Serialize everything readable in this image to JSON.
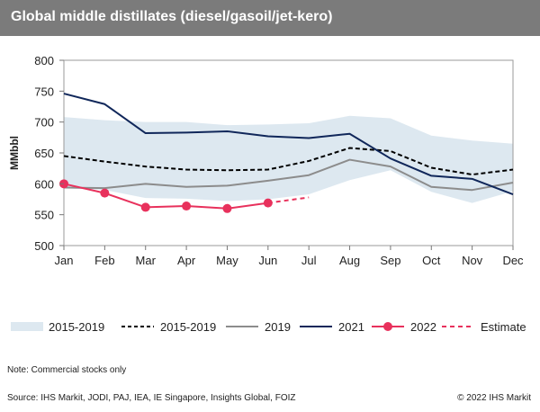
{
  "header": {
    "title": "Global middle distillates (diesel/gasoil/jet-kero)"
  },
  "chart_data": {
    "type": "line",
    "title": "Global middle distillates (diesel/gasoil/jet-kero)",
    "xlabel": "",
    "ylabel": "MMbbl",
    "ylim": [
      500,
      800
    ],
    "yticks": [
      500,
      550,
      600,
      650,
      700,
      750,
      800
    ],
    "categories": [
      "Jan",
      "Feb",
      "Mar",
      "Apr",
      "May",
      "Jun",
      "Jul",
      "Aug",
      "Sep",
      "Oct",
      "Nov",
      "Dec"
    ],
    "band": {
      "name": "2015-2019",
      "low": [
        593,
        590,
        577,
        576,
        572,
        575,
        583,
        606,
        622,
        587,
        569,
        588
      ],
      "high": [
        708,
        703,
        700,
        700,
        695,
        696,
        698,
        710,
        706,
        678,
        670,
        665
      ],
      "color": "#dde8f0"
    },
    "series": [
      {
        "name": "2015-2019",
        "style": "dashed",
        "color": "#000000",
        "values": [
          645,
          636,
          628,
          623,
          622,
          623,
          637,
          658,
          653,
          626,
          615,
          623
        ]
      },
      {
        "name": "2019",
        "style": "solid",
        "color": "#8c8c8c",
        "values": [
          594,
          593,
          600,
          595,
          597,
          605,
          614,
          639,
          628,
          595,
          590,
          602
        ]
      },
      {
        "name": "2021",
        "style": "solid",
        "color": "#10275a",
        "values": [
          746,
          729,
          682,
          683,
          685,
          677,
          674,
          681,
          641,
          613,
          608,
          583
        ]
      },
      {
        "name": "2022",
        "style": "markers",
        "color": "#e8315c",
        "values": [
          600,
          585,
          562,
          564,
          560,
          569,
          null,
          null,
          null,
          null,
          null,
          null
        ]
      },
      {
        "name": "Estimate",
        "style": "dashed",
        "color": "#e8315c",
        "values": [
          null,
          null,
          null,
          null,
          null,
          569,
          578,
          null,
          null,
          null,
          null,
          null
        ]
      }
    ],
    "legend": [
      "2015-2019",
      "2015-2019",
      "2019",
      "2021",
      "2022",
      "Estimate"
    ],
    "legend_position": "bottom"
  },
  "legend": {
    "band_label": "2015-2019",
    "avg_label": "2015-2019",
    "y2019_label": "2019",
    "y2021_label": "2021",
    "y2022_label": "2022",
    "estimate_label": "Estimate"
  },
  "footer": {
    "note": "Note: Commercial stocks only",
    "source": "Source: IHS Markit,  JODI, PAJ, IEA, IE Singapore, Insights Global, FOIZ",
    "copyright": "© 2022 IHS Markit"
  }
}
